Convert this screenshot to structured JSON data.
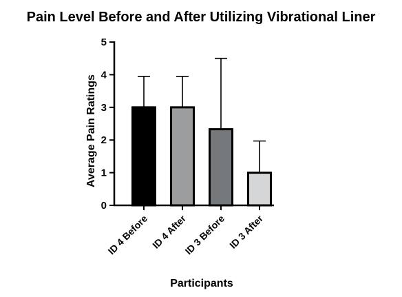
{
  "chart_data": {
    "type": "bar",
    "title": "Pain Level Before and After Utilizing Vibrational Liner",
    "xlabel": "Participants",
    "ylabel": "Average Pain Ratings",
    "ylim": [
      0,
      5
    ],
    "yticks": [
      "0",
      "1",
      "2",
      "3",
      "4",
      "5"
    ],
    "categories": [
      "ID 4 Before",
      "ID 4 After",
      "ID 3 Before",
      "ID 3 After"
    ],
    "values": [
      3.0,
      3.0,
      2.33,
      1.0
    ],
    "error_upper": [
      0.95,
      0.95,
      2.17,
      0.97
    ],
    "bar_colors": [
      "#000000",
      "#9b9d9f",
      "#76797b",
      "#d5d6d7"
    ],
    "grid": false,
    "legend": "none"
  }
}
